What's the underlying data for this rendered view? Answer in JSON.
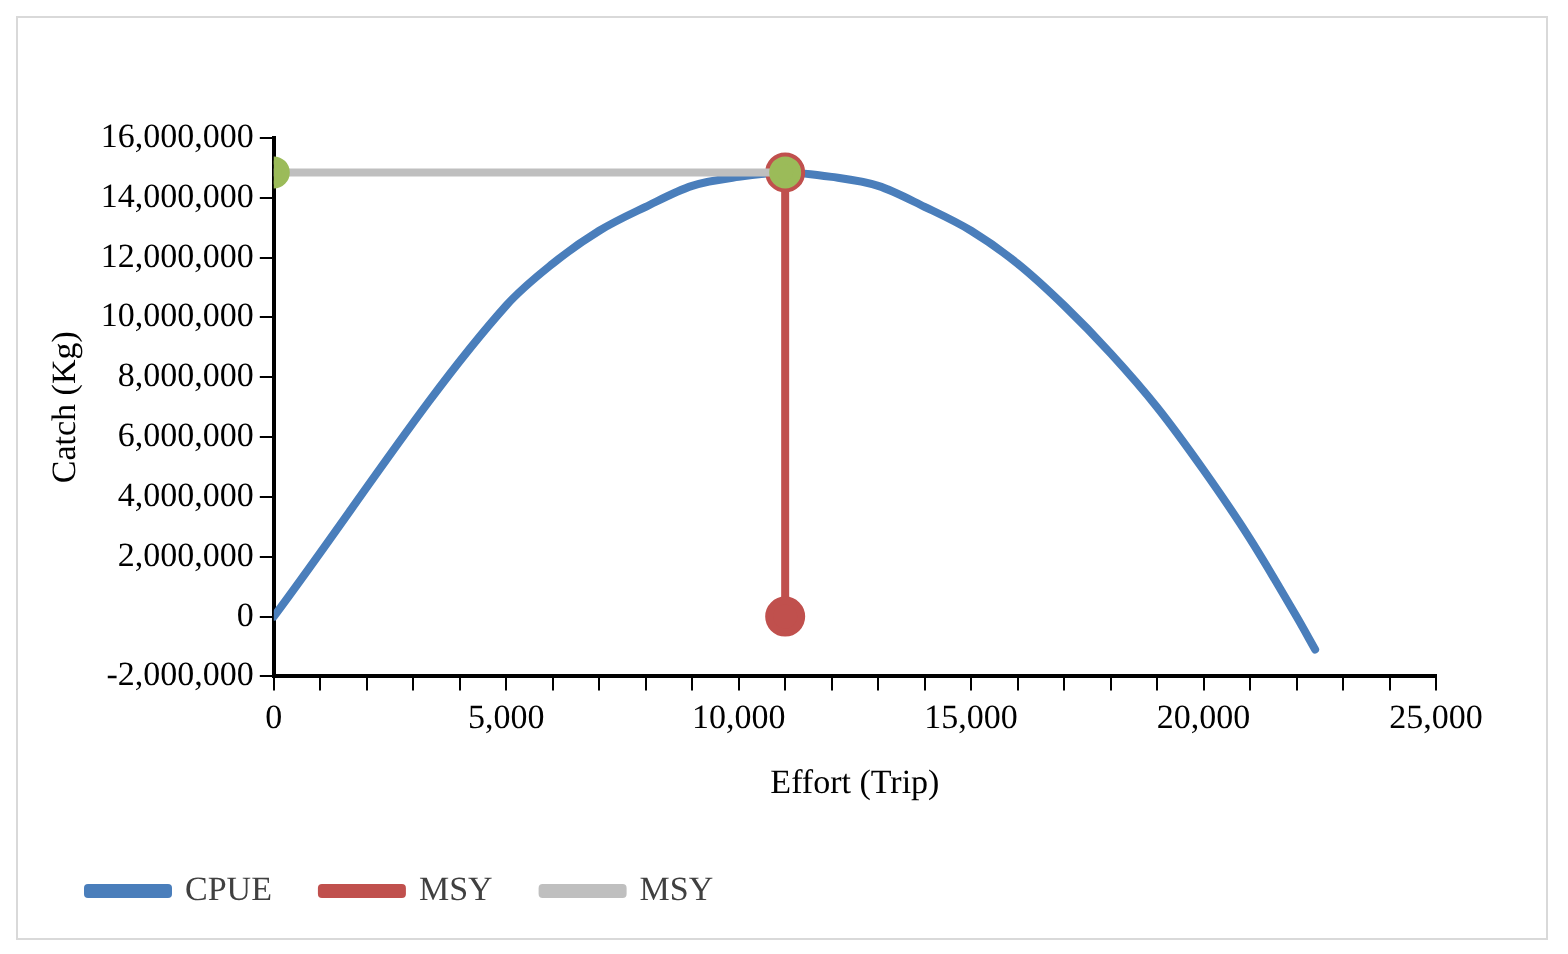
{
  "chart_data": {
    "type": "line",
    "xlabel": "Effort (Trip)",
    "ylabel": "Catch (Kg)",
    "xlim": [
      0,
      25000
    ],
    "ylim": [
      -2000000,
      16000000
    ],
    "xticks": [
      {
        "value": 0,
        "label": "0"
      },
      {
        "value": 1000,
        "label": null
      },
      {
        "value": 2000,
        "label": null
      },
      {
        "value": 3000,
        "label": null
      },
      {
        "value": 4000,
        "label": null
      },
      {
        "value": 5000,
        "label": "5,000"
      },
      {
        "value": 6000,
        "label": null
      },
      {
        "value": 7000,
        "label": null
      },
      {
        "value": 8000,
        "label": null
      },
      {
        "value": 9000,
        "label": null
      },
      {
        "value": 10000,
        "label": "10,000"
      },
      {
        "value": 11000,
        "label": null
      },
      {
        "value": 12000,
        "label": null
      },
      {
        "value": 13000,
        "label": null
      },
      {
        "value": 14000,
        "label": null
      },
      {
        "value": 15000,
        "label": "15,000"
      },
      {
        "value": 16000,
        "label": null
      },
      {
        "value": 17000,
        "label": null
      },
      {
        "value": 18000,
        "label": null
      },
      {
        "value": 19000,
        "label": null
      },
      {
        "value": 20000,
        "label": "20,000"
      },
      {
        "value": 21000,
        "label": null
      },
      {
        "value": 22000,
        "label": null
      },
      {
        "value": 23000,
        "label": null
      },
      {
        "value": 24000,
        "label": null
      },
      {
        "value": 25000,
        "label": "25,000"
      }
    ],
    "yticks": [
      {
        "value": -2000000,
        "label": "-2,000,000"
      },
      {
        "value": 0,
        "label": "0"
      },
      {
        "value": 2000000,
        "label": "2,000,000"
      },
      {
        "value": 4000000,
        "label": "4,000,000"
      },
      {
        "value": 6000000,
        "label": "6,000,000"
      },
      {
        "value": 8000000,
        "label": "8,000,000"
      },
      {
        "value": 10000000,
        "label": "10,000,000"
      },
      {
        "value": 12000000,
        "label": "12,000,000"
      },
      {
        "value": 14000000,
        "label": "14,000,000"
      },
      {
        "value": 16000000,
        "label": "16,000,000"
      }
    ],
    "grid": false,
    "legend": "bottom",
    "line_style": "solid",
    "series": [
      {
        "name": "CPUE",
        "color": "#4a7ebb",
        "marker": "none",
        "x": [
          0,
          5000,
          6000,
          7000,
          8000,
          9000,
          10000,
          11000,
          12000,
          13000,
          14000,
          15000,
          16000,
          17000,
          18000,
          19000,
          20000,
          21000,
          22000,
          22400
        ],
        "values": [
          0,
          10400000,
          11800000,
          12900000,
          13700000,
          14400000,
          14700000,
          14850000,
          14700000,
          14400000,
          13700000,
          12900000,
          11800000,
          10400000,
          8800000,
          7000000,
          4900000,
          2600000,
          0,
          -1100000
        ]
      },
      {
        "name": "MSY",
        "color": "#c0504d",
        "marker": "circle",
        "x": [
          11000,
          11000
        ],
        "values": [
          0,
          14850000
        ]
      },
      {
        "name": "MSY",
        "color": "#bfbfbf",
        "colors": [
          "#9bbb59",
          "#9bbb59"
        ],
        "marker": "circle",
        "x": [
          0,
          11000
        ],
        "values": [
          14850000,
          14850000
        ]
      }
    ]
  }
}
